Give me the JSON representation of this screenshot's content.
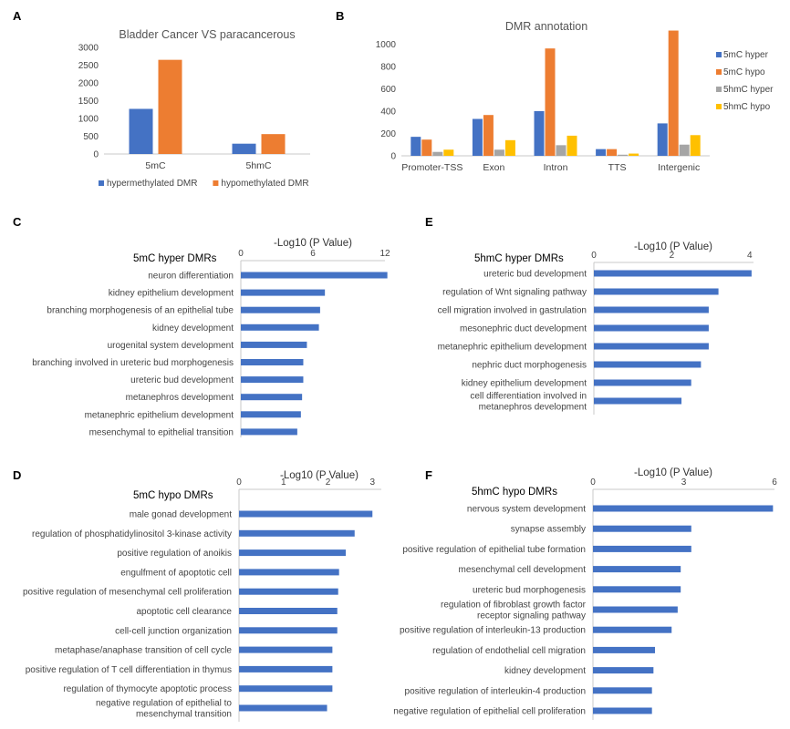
{
  "panels": {
    "A": "A",
    "B": "B",
    "C": "C",
    "D": "D",
    "E": "E",
    "F": "F"
  },
  "chart_data": [
    {
      "panel": "A",
      "type": "bar",
      "title": "Bladder Cancer VS paracancerous",
      "categories": [
        "5mC",
        "5hmC"
      ],
      "series": [
        {
          "name": "hypermethylated DMR",
          "values": [
            1270,
            290
          ],
          "color": "#4472C4"
        },
        {
          "name": "hypomethylated DMR",
          "values": [
            2650,
            560
          ],
          "color": "#ED7D31"
        }
      ],
      "ylim": [
        0,
        3000
      ],
      "yticks": [
        "0",
        "500",
        "1000",
        "1500",
        "2000",
        "2500",
        "3000"
      ],
      "legend": "bottom"
    },
    {
      "panel": "B",
      "type": "bar",
      "title": "DMR annotation",
      "categories": [
        "Promoter-TSS",
        "Exon",
        "Intron",
        "TTS",
        "Intergenic"
      ],
      "series": [
        {
          "name": "5mC hyper",
          "values": [
            170,
            330,
            400,
            60,
            290
          ],
          "color": "#4472C4"
        },
        {
          "name": "5mC hypo",
          "values": [
            145,
            365,
            960,
            60,
            1120
          ],
          "color": "#ED7D31"
        },
        {
          "name": "5hmC hyper",
          "values": [
            35,
            55,
            95,
            10,
            100
          ],
          "color": "#A5A5A5"
        },
        {
          "name": "5hmC hypo",
          "values": [
            55,
            140,
            180,
            20,
            185
          ],
          "color": "#FFC000"
        }
      ],
      "ylim": [
        0,
        1100
      ],
      "yticks": [
        "0",
        "200",
        "400",
        "600",
        "800",
        "1000"
      ],
      "legend": "right"
    },
    {
      "panel": "C",
      "type": "bar",
      "orientation": "horizontal",
      "title": "5mC hyper DMRs",
      "xlabel": "-Log10 (P Value)",
      "xlim": [
        0,
        12
      ],
      "xticks": [
        "0",
        "6",
        "12"
      ],
      "categories": [
        "neuron differentiation",
        "kidney epithelium development",
        "branching morphogenesis of an epithelial tube",
        "kidney development",
        "urogenital system development",
        "branching involved in ureteric bud morphogenesis",
        "ureteric bud development",
        "metanephros development",
        "metanephric epithelium development",
        "mesenchymal to epithelial transition"
      ],
      "values": [
        12.2,
        7.0,
        6.6,
        6.5,
        5.5,
        5.2,
        5.2,
        5.1,
        5.0,
        4.7
      ],
      "color": "#4472C4"
    },
    {
      "panel": "D",
      "type": "bar",
      "orientation": "horizontal",
      "title": "5mC hypo DMRs",
      "xlabel": "-Log10 (P Value)",
      "xlim": [
        0,
        3.2
      ],
      "xticks": [
        "0",
        "1",
        "2",
        "3"
      ],
      "categories": [
        "male gonad development",
        "regulation of phosphatidylinositol 3-kinase activity",
        "positive regulation of anoikis",
        "engulfment of apoptotic cell",
        "positive regulation of mesenchymal cell proliferation",
        "apoptotic cell clearance",
        "cell-cell junction organization",
        "metaphase/anaphase transition of cell cycle",
        "positive regulation of T cell differentiation in thymus",
        "regulation of thymocyte apoptotic process",
        "negative regulation of epithelial to mesenchymal transition"
      ],
      "values": [
        3.0,
        2.6,
        2.4,
        2.25,
        2.23,
        2.21,
        2.21,
        2.1,
        2.1,
        2.1,
        1.98
      ],
      "color": "#4472C4"
    },
    {
      "panel": "E",
      "type": "bar",
      "orientation": "horizontal",
      "title": "5hmC hyper DMRs",
      "xlabel": "-Log10 (P Value)",
      "xlim": [
        0,
        4.1
      ],
      "xticks": [
        "0",
        "2",
        "4"
      ],
      "categories": [
        "ureteric bud development",
        "regulation of Wnt signaling pathway",
        "cell migration involved in gastrulation",
        "mesonephric duct development",
        "metanephric epithelium development",
        "nephric duct morphogenesis",
        "kidney epithelium development",
        "cell differentiation involved in metanephros development"
      ],
      "values": [
        4.05,
        3.2,
        2.95,
        2.95,
        2.95,
        2.75,
        2.5,
        2.25
      ],
      "color": "#4472C4"
    },
    {
      "panel": "F",
      "type": "bar",
      "orientation": "horizontal",
      "title": "5hmC hypo DMRs",
      "xlabel": "-Log10 (P Value)",
      "xlim": [
        0,
        6
      ],
      "xticks": [
        "0",
        "3",
        "6"
      ],
      "categories": [
        "nervous system development",
        "synapse assembly",
        "positive regulation of epithelial tube formation",
        "mesenchymal cell development",
        "ureteric bud morphogenesis",
        "regulation of fibroblast growth factor receptor signaling pathway",
        "positive regulation of interleukin-13 production",
        "regulation of endothelial cell migration",
        "kidney development",
        "positive regulation of interleukin-4 production",
        "negative regulation of epithelial cell proliferation"
      ],
      "values": [
        5.95,
        3.25,
        3.25,
        2.9,
        2.9,
        2.8,
        2.6,
        2.05,
        2.0,
        1.95,
        1.95
      ],
      "color": "#4472C4"
    }
  ]
}
